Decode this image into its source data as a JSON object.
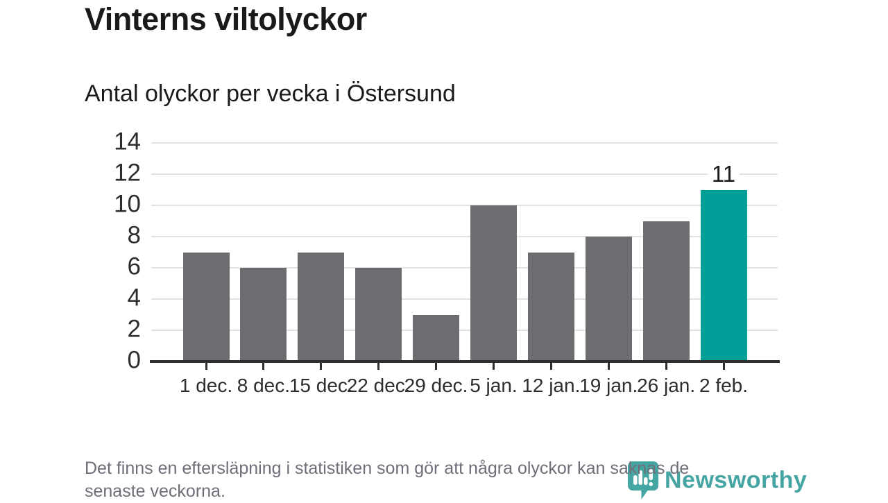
{
  "chart_data": {
    "type": "bar",
    "title": "Vinterns viltolyckor",
    "subtitle": "Antal olyckor per vecka i Östersund",
    "categories": [
      "1 dec.",
      "8 dec.",
      "15 dec.",
      "22 dec.",
      "29 dec.",
      "5 jan.",
      "12 jan.",
      "19 jan.",
      "26 jan.",
      "2 feb."
    ],
    "values": [
      7,
      6,
      7,
      6,
      3,
      10,
      7,
      8,
      9,
      11
    ],
    "highlight_index": 9,
    "highlight_label": "11",
    "xlabel": "",
    "ylabel": "",
    "ylim": [
      0,
      14
    ],
    "yticks": [
      0,
      2,
      4,
      6,
      8,
      10,
      12,
      14
    ],
    "grid": "horizontal",
    "legend": "none"
  },
  "colors": {
    "bar": "#6c6c71",
    "highlight": "#00a099",
    "grid": "#e2e2e2",
    "baseline": "#2f2f2f",
    "axis-text": "#2d2d2d",
    "title-text": "#1a1a1a",
    "footer-text": "#6e6e79",
    "logo": "#45a5a2"
  },
  "footer": {
    "lines": [
      "Det finns en eftersläpning i statistiken som gör att några olyckor kan saknas de",
      "senaste veckorna."
    ]
  },
  "logo": {
    "name": "Newsworthy",
    "icon": "speech-bubble-bar-chart-icon"
  }
}
